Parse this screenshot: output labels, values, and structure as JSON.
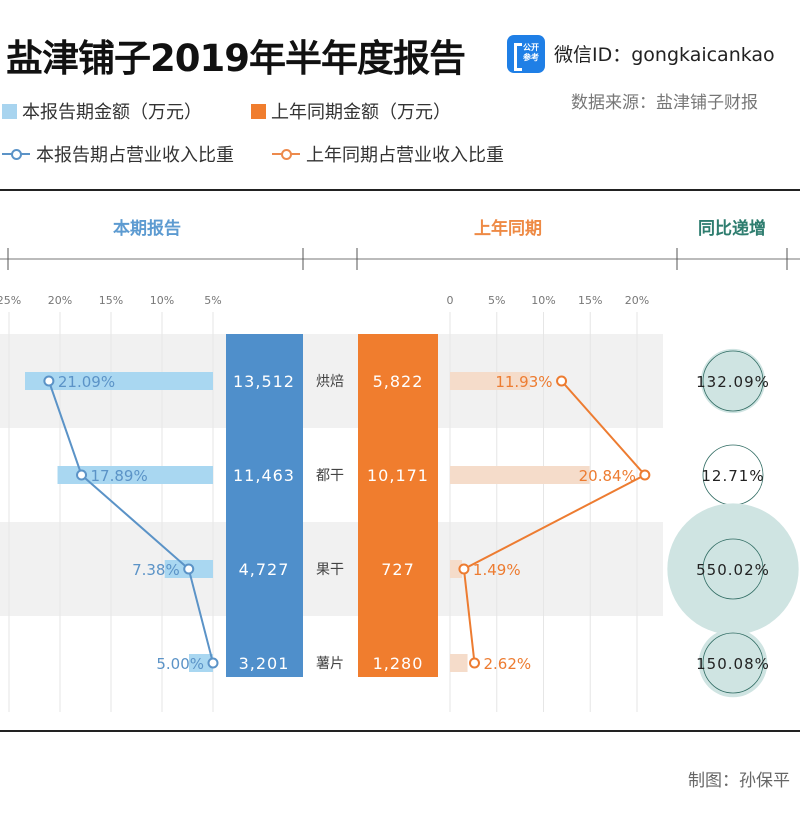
{
  "header": {
    "title": "盐津铺子2019年半年度报告",
    "logo_text": [
      "公开",
      "参考"
    ],
    "wechat": "微信ID：gongkaicankao",
    "source": "数据来源：盐津铺子财报"
  },
  "legend": [
    {
      "label": "本报告期金额（万元）",
      "kind": "square",
      "color": "#a8d4ef"
    },
    {
      "label": "上年同期金额（万元）",
      "kind": "square",
      "color": "#f07d2e"
    },
    {
      "label": "本报告期占营业收入比重",
      "kind": "line",
      "color": "#5b93c7"
    },
    {
      "label": "上年同期占营业收入比重",
      "kind": "line",
      "color": "#ed8a4c"
    }
  ],
  "colors": {
    "current_amount": "#4f8fcb",
    "prior_amount": "#f07d2e",
    "current_share_bar": "#a9d7f1",
    "current_share_line": "#5b93c7",
    "prior_share_bar": "#f5dcca",
    "prior_share_line": "#ed7c31",
    "yoy_bubble": "#cfe4e2",
    "yoy_stroke": "#2f6b62",
    "band": "#f1f1f1"
  },
  "sections": {
    "current": "本期报告",
    "prior": "上年同期",
    "yoy": "同比递增"
  },
  "footer": "制图：孙保平",
  "chart_data": {
    "type": "table",
    "title": "盐津铺子2019年半年度报告",
    "categories": [
      "烘焙",
      "都干",
      "果干",
      "薯片"
    ],
    "series": [
      {
        "name": "本报告期金额（万元）",
        "values": [
          13512,
          11463,
          4727,
          3201
        ],
        "labels": [
          "13,512",
          "11,463",
          "4,727",
          "3,201"
        ]
      },
      {
        "name": "上年同期金额（万元）",
        "values": [
          5822,
          10171,
          727,
          1280
        ],
        "labels": [
          "5,822",
          "10,171",
          "727",
          "1,280"
        ]
      },
      {
        "name": "本报告期占营业收入比重",
        "values": [
          21.09,
          17.89,
          7.38,
          5.0
        ],
        "labels": [
          "21.09%",
          "17.89%",
          "7.38%",
          "5.00%"
        ]
      },
      {
        "name": "上年同期占营业收入比重",
        "values": [
          11.93,
          20.84,
          1.49,
          2.62
        ],
        "labels": [
          "11.93%",
          "20.84%",
          "1.49%",
          "2.62%"
        ]
      },
      {
        "name": "同比递增",
        "values": [
          132.09,
          12.71,
          550.02,
          150.08
        ],
        "labels": [
          "132.09%",
          "12.71%",
          "550.02%",
          "150.08%"
        ]
      }
    ],
    "current_axis": {
      "ticks": [
        "25%",
        "20%",
        "15%",
        "10%",
        "5%"
      ],
      "tick_values": [
        25,
        20,
        15,
        10,
        5
      ],
      "direction": "reversed"
    },
    "prior_axis": {
      "ticks": [
        "0",
        "5%",
        "10%",
        "15%",
        "20%"
      ],
      "tick_values": [
        0,
        5,
        10,
        15,
        20
      ]
    }
  }
}
